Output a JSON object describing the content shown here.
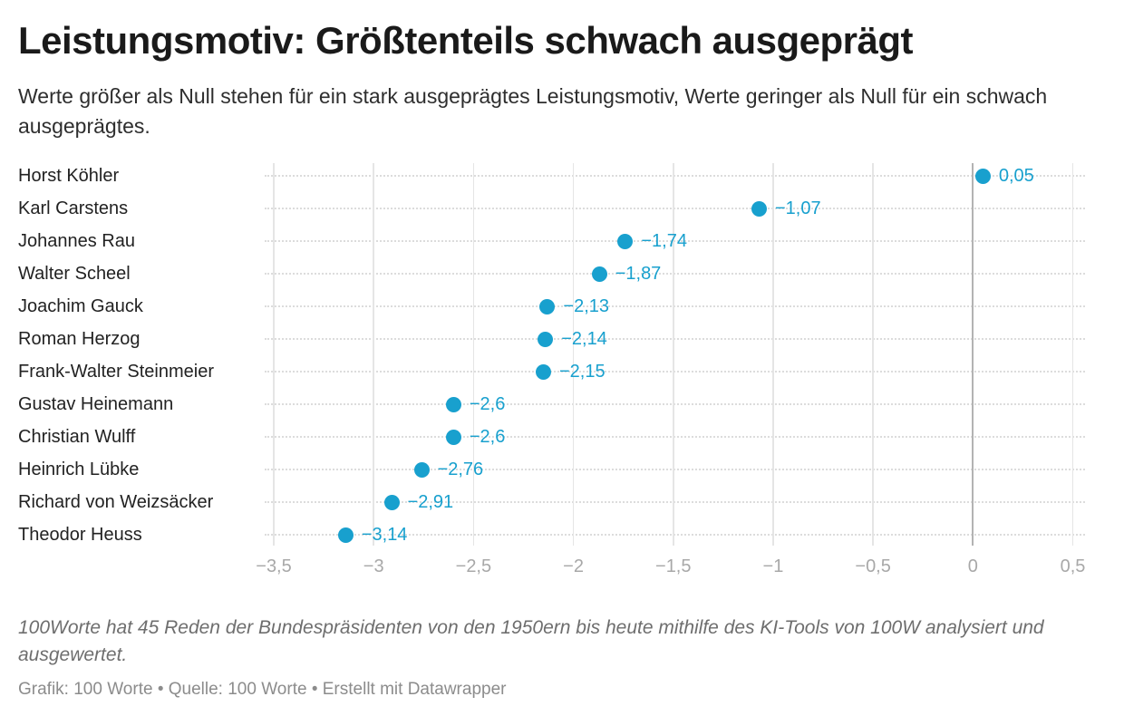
{
  "header": {
    "title": "Leistungsmotiv: Größtenteils schwach ausgeprägt",
    "description": "Werte größer als Null stehen für ein stark ausgeprägtes Leistungsmotiv, Werte geringer als Null für ein schwach ausgeprägtes."
  },
  "chart_data": {
    "type": "scatter",
    "variant": "dot-plot",
    "orientation": "horizontal",
    "title": "Leistungsmotiv: Größtenteils schwach ausgeprägt",
    "subtitle": "Werte größer als Null stehen für ein stark ausgeprägtes Leistungsmotiv, Werte geringer als Null für ein schwach ausgeprägtes.",
    "categories": [
      "Horst Köhler",
      "Karl Carstens",
      "Johannes Rau",
      "Walter Scheel",
      "Joachim Gauck",
      "Roman Herzog",
      "Frank-Walter Steinmeier",
      "Gustav Heinemann",
      "Christian Wulff",
      "Heinrich Lübke",
      "Richard von Weizsäcker",
      "Theodor Heuss"
    ],
    "values": [
      0.05,
      -1.07,
      -1.74,
      -1.87,
      -2.13,
      -2.14,
      -2.15,
      -2.6,
      -2.6,
      -2.76,
      -2.91,
      -3.14
    ],
    "value_labels": [
      "0,05",
      "−1,07",
      "−1,74",
      "−1,87",
      "−2,13",
      "−2,14",
      "−2,15",
      "−2,6",
      "−2,6",
      "−2,76",
      "−2,91",
      "−3,14"
    ],
    "xlim": [
      -3.5,
      0.5
    ],
    "xticks": [
      -3.5,
      -3,
      -2.5,
      -2,
      -1.5,
      -1,
      -0.5,
      0,
      0.5
    ],
    "xtick_labels": [
      "−3,5",
      "−3",
      "−2,5",
      "−2",
      "−1,5",
      "−1",
      "−0,5",
      "0",
      "0,5"
    ],
    "grid": true,
    "legend": "none",
    "colors": {
      "dot": "#18a0ce",
      "value_label": "#18a0ce",
      "gridline": "#e5e5e5",
      "zero_line": "#b3b3b3",
      "leader_dots": "#dcdcdc",
      "tick_label": "#a8a8a8",
      "category_label": "#222222"
    }
  },
  "footer": {
    "notes": "100Worte hat 45 Reden der Bundespräsidenten von den 1950ern bis heute mithilfe des KI-Tools von 100W analysiert und ausgewertet.",
    "credit": "Grafik: 100 Worte • Quelle: 100 Worte • Erstellt mit Datawrapper"
  }
}
